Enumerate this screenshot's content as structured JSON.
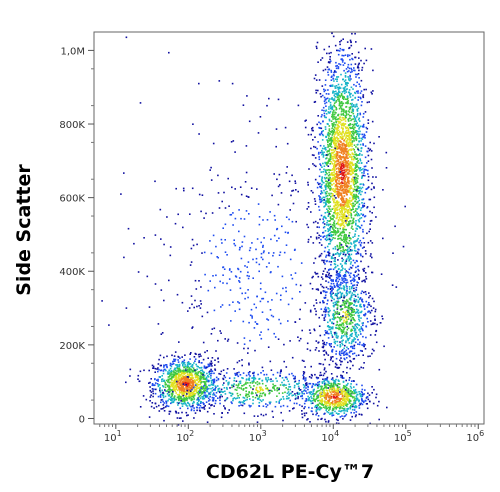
{
  "chart_data": {
    "type": "scatter",
    "title": "",
    "xlabel": "CD62L  PE-Cy™7",
    "ylabel": "Side Scatter",
    "x_scale": "log",
    "xlim": [
      5,
      1200000
    ],
    "ylim": [
      -15000,
      1050000
    ],
    "grid": false,
    "legend": "none",
    "x_ticks": [
      {
        "value": 10,
        "base": "10",
        "exp": "1"
      },
      {
        "value": 100,
        "base": "10",
        "exp": "2"
      },
      {
        "value": 1000,
        "base": "10",
        "exp": "3"
      },
      {
        "value": 10000,
        "base": "10",
        "exp": "4"
      },
      {
        "value": 100000,
        "base": "10",
        "exp": "5"
      },
      {
        "value": 1000000,
        "base": "10",
        "exp": "6"
      }
    ],
    "y_ticks": [
      {
        "value": 0,
        "label": "0"
      },
      {
        "value": 200000,
        "label": "200K"
      },
      {
        "value": 400000,
        "label": "400K"
      },
      {
        "value": 600000,
        "label": "600K"
      },
      {
        "value": 800000,
        "label": "800K"
      },
      {
        "value": 1000000,
        "label": "1,0M"
      }
    ],
    "populations": [
      {
        "x_center": 90,
        "y_center": 95000,
        "count": 1100,
        "density": "high"
      },
      {
        "x_center": 900,
        "y_center": 80000,
        "count": 500,
        "density": "medium"
      },
      {
        "x_center": 10000,
        "y_center": 60000,
        "count": 700,
        "density": "high"
      },
      {
        "x_center": 13000,
        "y_center": 670000,
        "count": 2600,
        "density": "high"
      },
      {
        "x_center": 14000,
        "y_center": 280000,
        "count": 700,
        "density": "medium"
      },
      {
        "x_center": 800,
        "y_center": 400000,
        "count": 500,
        "density": "low"
      }
    ],
    "colormap": [
      "#1010a0",
      "#1e4cf0",
      "#18b4c8",
      "#40c840",
      "#e0e020",
      "#f08020",
      "#e01818"
    ]
  }
}
